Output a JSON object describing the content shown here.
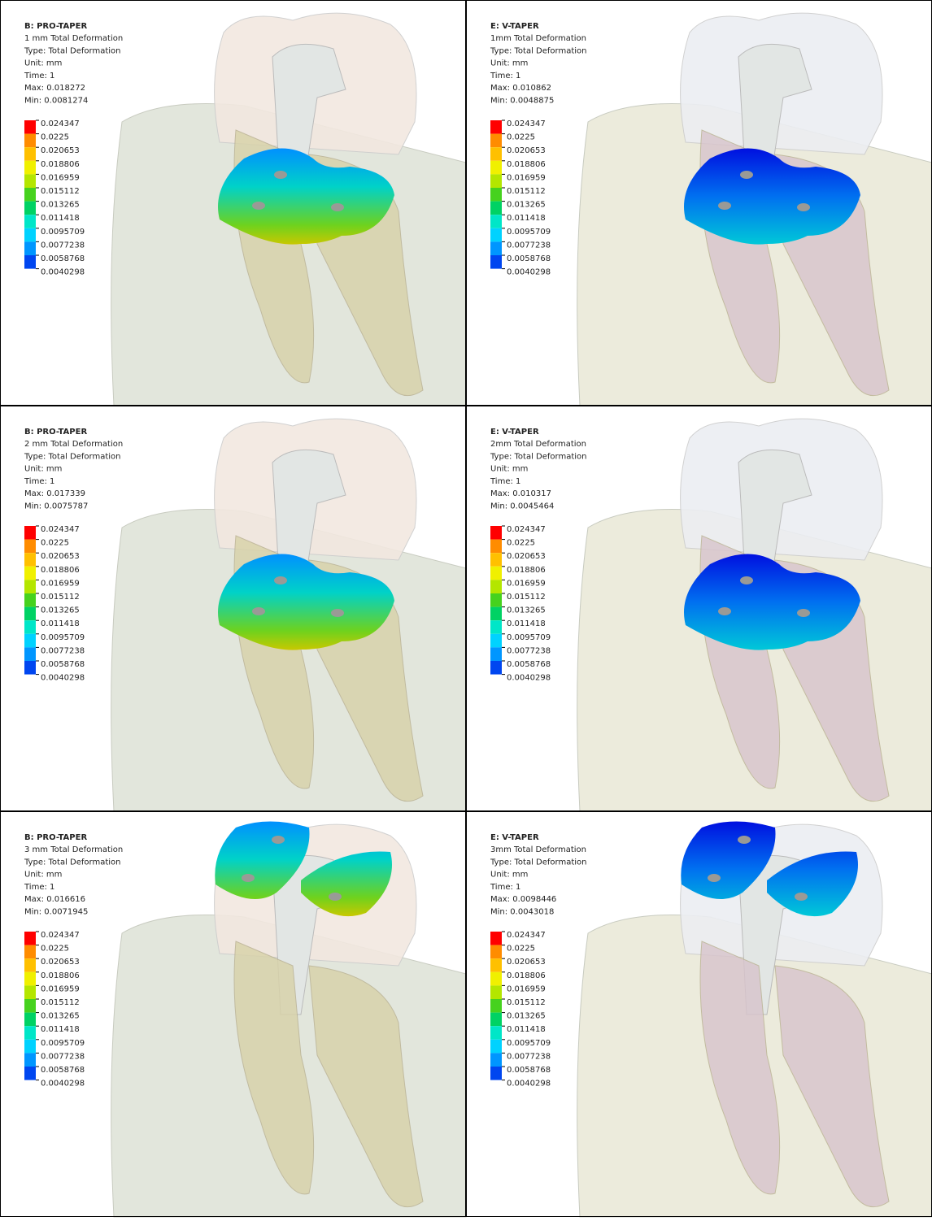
{
  "legend": {
    "labels": [
      "0.024347",
      "0.0225",
      "0.020653",
      "0.018806",
      "0.016959",
      "0.015112",
      "0.013265",
      "0.011418",
      "0.0095709",
      "0.0077238",
      "0.0058768",
      "0.0040298"
    ],
    "colors": [
      "#ff0000",
      "#ff8c00",
      "#ffc000",
      "#f0f000",
      "#b4e600",
      "#46d21e",
      "#00d264",
      "#00e6c8",
      "#00d2ff",
      "#0096ff",
      "#0046f0",
      "#0000e6"
    ]
  },
  "panels": [
    {
      "title": "B: PRO-TAPER",
      "lines": [
        "1 mm Total Deformation",
        "Type: Total Deformation",
        "Unit: mm",
        "Time: 1",
        "Max: 0.018272",
        "Min: 0.0081274"
      ]
    },
    {
      "title": "E: V-TAPER",
      "lines": [
        "1mm Total Deformation",
        "Type: Total Deformation",
        "Unit: mm",
        "Time: 1",
        "Max: 0.010862",
        "Min: 0.0048875"
      ]
    },
    {
      "title": "B: PRO-TAPER",
      "lines": [
        "2 mm Total Deformation",
        "Type: Total Deformation",
        "Unit: mm",
        "Time: 1",
        "Max: 0.017339",
        "Min: 0.0075787"
      ]
    },
    {
      "title": "E: V-TAPER",
      "lines": [
        "2mm Total Deformation",
        "Type: Total Deformation",
        "Unit: mm",
        "Time: 1",
        "Max: 0.010317",
        "Min: 0.0045464"
      ]
    },
    {
      "title": "B: PRO-TAPER",
      "lines": [
        "3 mm Total Deformation",
        "Type: Total Deformation",
        "Unit: mm",
        "Time: 1",
        "Max: 0.016616",
        "Min: 0.0071945"
      ]
    },
    {
      "title": "E: V-TAPER",
      "lines": [
        "3mm Total Deformation",
        "Type: Total Deformation",
        "Unit: mm",
        "Time: 1",
        "Max: 0.0098446",
        "Min: 0.0043018"
      ]
    }
  ]
}
